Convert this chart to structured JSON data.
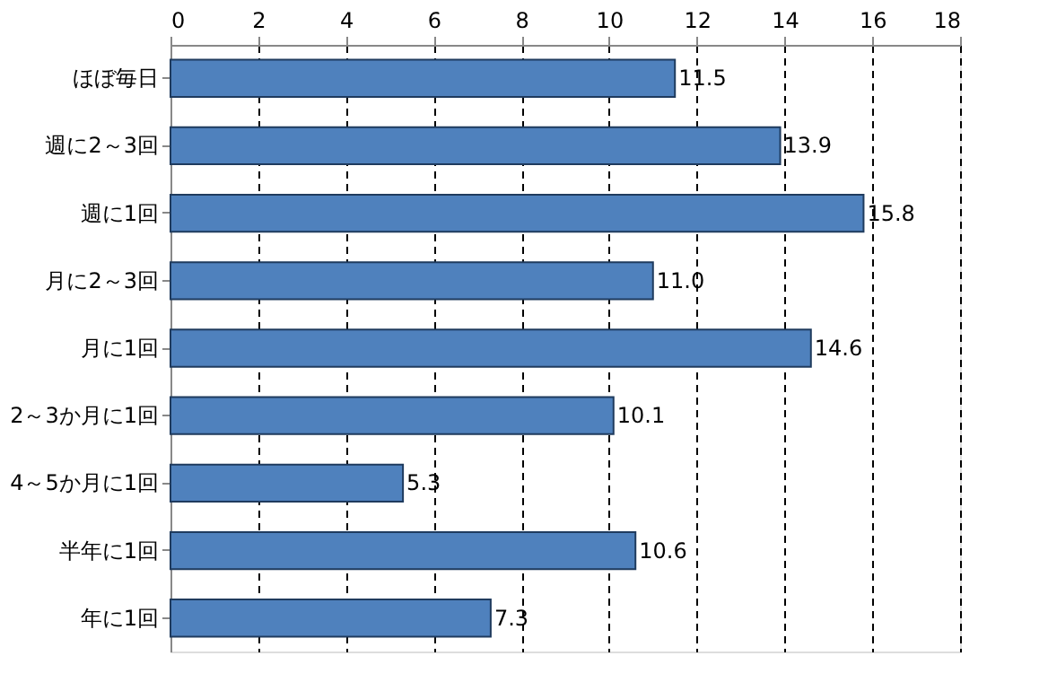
{
  "chart_data": {
    "type": "bar",
    "orientation": "horizontal",
    "categories": [
      "ほぼ毎日",
      "週に2～3回",
      "週に1回",
      "月に2～3回",
      "月に1回",
      "2～3か月に1回",
      "4～5か月に1回",
      "半年に1回",
      "年に1回"
    ],
    "values": [
      11.5,
      13.9,
      15.8,
      11.0,
      14.6,
      10.1,
      5.3,
      10.6,
      7.3
    ],
    "value_labels": [
      "11.5",
      "13.9",
      "15.8",
      "11.0",
      "14.6",
      "10.1",
      "5.3",
      "10.6",
      "7.3"
    ],
    "color": "#4f81bd",
    "xlim": [
      0,
      18
    ],
    "xticks": [
      0,
      2,
      4,
      6,
      8,
      10,
      12,
      14,
      16,
      18
    ],
    "grid": "x"
  }
}
